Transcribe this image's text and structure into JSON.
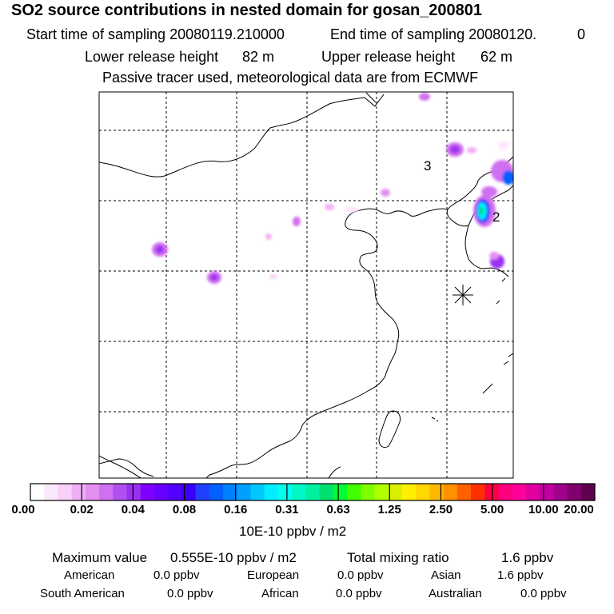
{
  "header": {
    "title": "SO2 source contributions in nested domain for gosan_200801",
    "start_label": "Start time of sampling 20080119.210000",
    "end_label": "End time of sampling 20080120.",
    "end_value": "0",
    "lower_label": "Lower release height",
    "lower_value": "82 m",
    "upper_label": "Upper release height",
    "upper_value": "62 m",
    "tracer_line": "Passive tracer used, meteorological data are from ECMWF"
  },
  "map": {
    "labels": {
      "region_3": "3",
      "region_2": "2"
    },
    "grid": {
      "lon_lines": 5,
      "lat_lines": 5
    }
  },
  "colorbar": {
    "ticks": [
      "0.00",
      "0.02",
      "0.04",
      "0.08",
      "0.16",
      "0.31",
      "0.63",
      "1.25",
      "2.50",
      "5.00",
      "10.00",
      "20.00"
    ],
    "colors": [
      "#ffffff",
      "#fce8fc",
      "#f8d0f8",
      "#f0b0f4",
      "#e290f0",
      "#d070f0",
      "#b050f0",
      "#9a30f0",
      "#7f00ff",
      "#6a00ff",
      "#5200ff",
      "#3a00ff",
      "#1f40ff",
      "#0060ff",
      "#0080ff",
      "#00a0ff",
      "#00c8ff",
      "#00eeff",
      "#00ffee",
      "#00f8c8",
      "#00f0a0",
      "#00e070",
      "#00ff30",
      "#40ff00",
      "#80ff00",
      "#b0ff00",
      "#d8f000",
      "#fff000",
      "#ffd800",
      "#ffb800",
      "#ff9000",
      "#ff6000",
      "#ff3000",
      "#ff0040",
      "#ff0080",
      "#ff0098",
      "#e000a0",
      "#c000a0",
      "#a0008a",
      "#80006e",
      "#600050"
    ],
    "unit": "10E-10 ppbv / m2"
  },
  "stats": {
    "max_label": "Maximum value",
    "max_value": "0.555E-10 ppbv / m2",
    "total_label": "Total mixing ratio",
    "total_value": "1.6 ppbv",
    "regions": [
      {
        "name": "American",
        "value": "0.0 ppbv"
      },
      {
        "name": "European",
        "value": "0.0 ppbv"
      },
      {
        "name": "Asian",
        "value": "1.6 ppbv"
      },
      {
        "name": "South American",
        "value": "0.0 ppbv"
      },
      {
        "name": "African",
        "value": "0.0 ppbv"
      },
      {
        "name": "Australian",
        "value": "0.0 ppbv"
      }
    ]
  }
}
